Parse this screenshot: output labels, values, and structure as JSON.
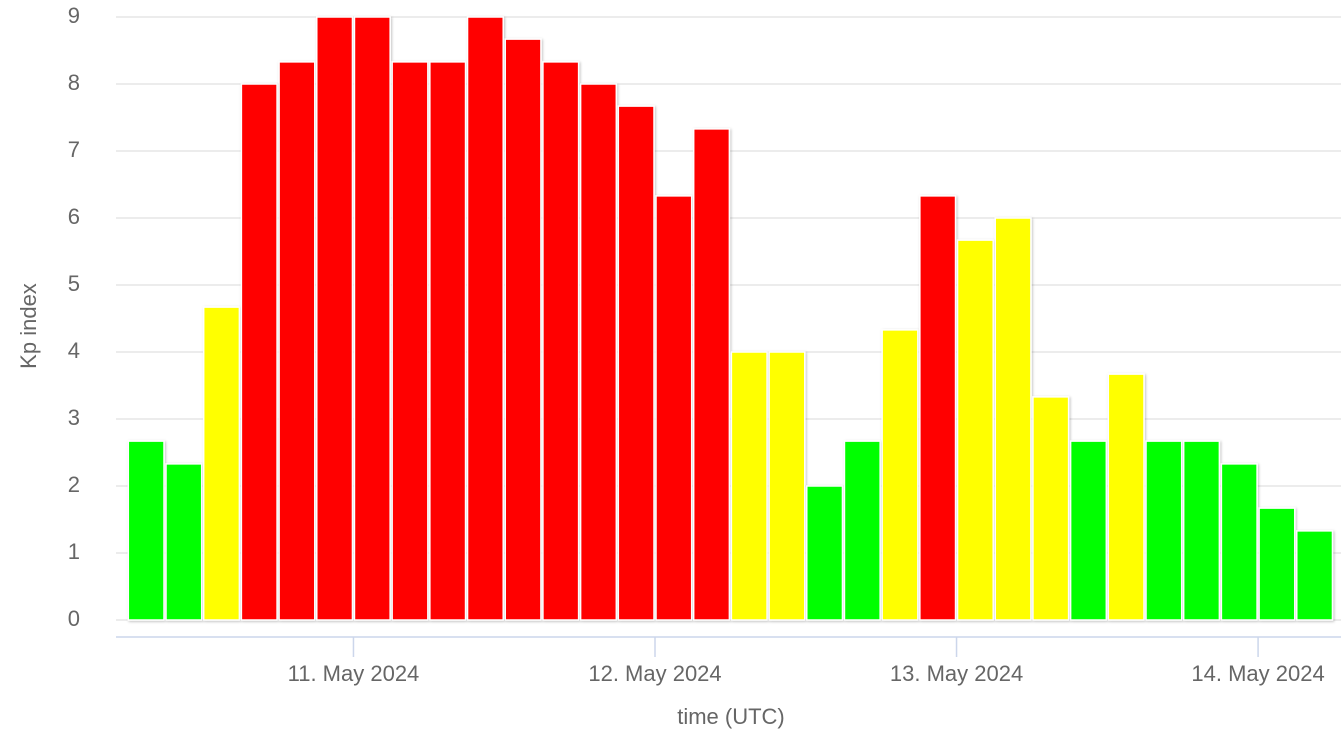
{
  "chart_data": {
    "type": "bar",
    "xlabel": "time (UTC)",
    "ylabel": "Kp index",
    "values": [
      2.67,
      2.33,
      4.67,
      8,
      8.33,
      9,
      9,
      8.33,
      8.33,
      9,
      8.67,
      8.33,
      8,
      7.67,
      6.33,
      7.33,
      4,
      4,
      2,
      2.67,
      4.33,
      6.33,
      5.67,
      6,
      3.33,
      2.67,
      3.67,
      2.67,
      2.67,
      2.33,
      1.67,
      1.33
    ],
    "colors": [
      "#00ff00",
      "#00ff00",
      "#ffff00",
      "#ff0000",
      "#ff0000",
      "#ff0000",
      "#ff0000",
      "#ff0000",
      "#ff0000",
      "#ff0000",
      "#ff0000",
      "#ff0000",
      "#ff0000",
      "#ff0000",
      "#ff0000",
      "#ff0000",
      "#ffff00",
      "#ffff00",
      "#00ff00",
      "#00ff00",
      "#ffff00",
      "#ff0000",
      "#ffff00",
      "#ffff00",
      "#ffff00",
      "#00ff00",
      "#ffff00",
      "#00ff00",
      "#00ff00",
      "#00ff00",
      "#00ff00",
      "#00ff00"
    ],
    "xlim": [
      -0.3,
      32.2
    ],
    "xticks": [
      {
        "value": 6,
        "label": "11. May 2024"
      },
      {
        "value": 14,
        "label": "12. May 2024"
      },
      {
        "value": 22,
        "label": "13. May 2024"
      },
      {
        "value": 30,
        "label": "14. May 2024"
      }
    ],
    "ylim": [
      0,
      9
    ],
    "yticks": [
      0,
      1,
      2,
      3,
      4,
      5,
      6,
      7,
      8,
      9
    ],
    "grid": true
  }
}
